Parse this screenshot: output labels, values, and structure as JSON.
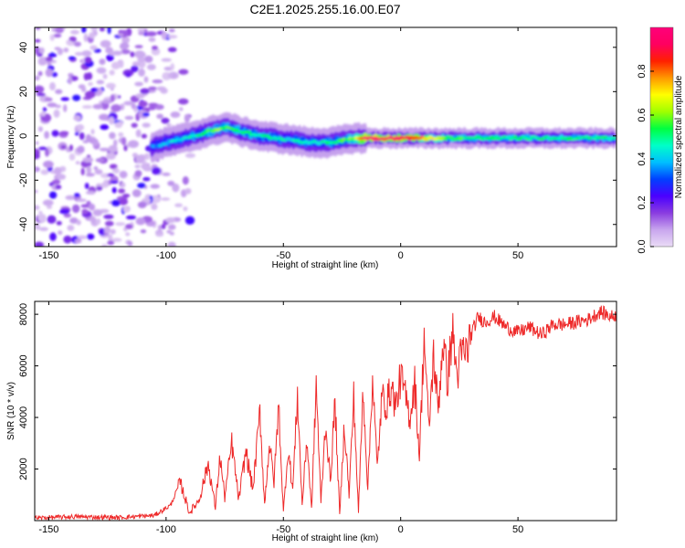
{
  "title": "C2E1.2025.255.16.00.E07",
  "colors": {
    "snr_line": "#ee2a2a",
    "colorbar_stops": [
      "#eadcf6",
      "#c8a5ee",
      "#8a3ce0",
      "#4a00ff",
      "#0040ff",
      "#00bfff",
      "#00ffc8",
      "#00ff40",
      "#a0ff00",
      "#ffff00",
      "#ff9900",
      "#ff2000",
      "#ff0060",
      "#ff007a"
    ]
  },
  "chart_data": [
    {
      "type": "heatmap",
      "title": "",
      "xlabel": "Height of straight line (km)",
      "ylabel": "Frequency (Hz)",
      "xlim": [
        -156,
        92
      ],
      "ylim": [
        -50,
        49
      ],
      "x_ticks": [
        -150,
        -100,
        -50,
        0,
        50
      ],
      "y_ticks": [
        -40,
        -20,
        0,
        20,
        40
      ],
      "x_tick_labels": [
        "-150",
        "-100",
        "-50",
        "0",
        "50"
      ],
      "y_tick_labels": [
        "-40",
        "-20",
        "0",
        "20",
        "40"
      ],
      "noise_region_x": [
        -156,
        -88
      ],
      "ridge": {
        "x": [
          -106,
          -100,
          -92,
          -85,
          -78,
          -74,
          -68,
          -60,
          -52,
          -45,
          -38,
          -30,
          -25,
          -20,
          -15,
          0,
          20,
          50,
          92
        ],
        "y": [
          -5,
          -3,
          -1,
          1,
          3,
          4,
          2,
          0,
          -1,
          -2,
          -3,
          -3,
          -2,
          -1,
          -1,
          -1,
          -1,
          -1,
          -1
        ],
        "amplitude": [
          0.35,
          0.4,
          0.45,
          0.5,
          0.6,
          0.55,
          0.5,
          0.5,
          0.45,
          0.45,
          0.45,
          0.5,
          0.55,
          0.6,
          0.95,
          0.95,
          0.55,
          0.5,
          0.5
        ]
      },
      "colorbar": {
        "label": "Normalized spectral amplitude",
        "range": [
          0,
          1
        ],
        "ticks": [
          0.0,
          0.2,
          0.4,
          0.6,
          0.8
        ],
        "tick_labels": [
          "0.0",
          "0.2",
          "0.4",
          "0.6",
          "0.8"
        ]
      }
    },
    {
      "type": "line",
      "title": "",
      "xlabel": "Height of straight line (km)",
      "ylabel": "SNR (10 * v/v)",
      "xlim": [
        -156,
        92
      ],
      "ylim": [
        0,
        8500
      ],
      "x_ticks": [
        -150,
        -100,
        -50,
        0,
        50
      ],
      "y_ticks": [
        2000,
        4000,
        6000,
        8000
      ],
      "x_tick_labels": [
        "-150",
        "-100",
        "-50",
        "0",
        "50"
      ],
      "y_tick_labels": [
        "2000",
        "4000",
        "6000",
        "8000"
      ],
      "series": [
        {
          "name": "SNR",
          "x": [
            -156,
            -140,
            -120,
            -105,
            -98,
            -94,
            -90,
            -86,
            -82,
            -79,
            -77,
            -75,
            -72,
            -69,
            -66,
            -63,
            -60,
            -58,
            -56,
            -54,
            -52,
            -50,
            -48,
            -46,
            -44,
            -42,
            -40,
            -38,
            -36,
            -34,
            -32,
            -30,
            -28,
            -26,
            -24,
            -22,
            -20,
            -18,
            -16,
            -14,
            -12,
            -10,
            -8,
            -6,
            -4,
            -2,
            0,
            2,
            4,
            6,
            8,
            10,
            12,
            14,
            16,
            18,
            20,
            22,
            24,
            26,
            28,
            30,
            33,
            36,
            40,
            45,
            50,
            55,
            60,
            65,
            70,
            75,
            80,
            85,
            90,
            92
          ],
          "y": [
            100,
            150,
            120,
            200,
            600,
            1500,
            300,
            800,
            2200,
            500,
            2500,
            900,
            3000,
            800,
            2700,
            1200,
            4200,
            600,
            3000,
            1500,
            4500,
            300,
            2800,
            1200,
            4900,
            600,
            3200,
            400,
            5300,
            700,
            3800,
            1500,
            4600,
            200,
            3800,
            1000,
            4800,
            300,
            5200,
            1200,
            5600,
            2000,
            4800,
            4500,
            5200,
            4400,
            5600,
            4800,
            4000,
            5400,
            2500,
            7200,
            3500,
            6400,
            4300,
            7000,
            5400,
            7400,
            5600,
            6500,
            6500,
            7200,
            7900,
            7700,
            7900,
            7500,
            7300,
            7500,
            7200,
            7600,
            7600,
            7700,
            7800,
            8100,
            7900,
            8000
          ]
        }
      ]
    }
  ]
}
